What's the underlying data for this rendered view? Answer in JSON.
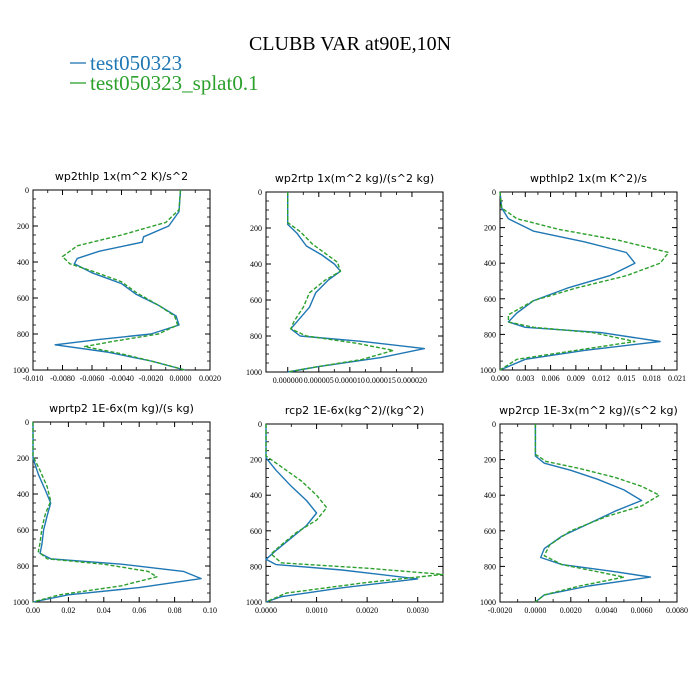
{
  "figure_title": "CLUBB VAR at90E,10N",
  "legend": [
    {
      "label": "test050323",
      "color": "#1f77b4",
      "dash": "solid"
    },
    {
      "label": "test050323_splat0.1",
      "color": "#2ca02c",
      "dash": "dashed"
    }
  ],
  "chart_data": [
    {
      "type": "line",
      "title": "wp2thlp  1x(m^2 K)/s^2",
      "xlim": [
        -0.01,
        0.002
      ],
      "xticks": [
        -0.01,
        -0.008,
        -0.006,
        -0.004,
        -0.002,
        0.0,
        0.002
      ],
      "xtick_labels": [
        "-0.010",
        "-0.0080",
        "-0.0060",
        "-0.0040",
        "-0.0020",
        "0.0000",
        "0.0020"
      ],
      "ylim": [
        1000,
        0
      ],
      "yticks": [
        0,
        200,
        400,
        600,
        800,
        1000
      ],
      "series": [
        {
          "name": "test050323",
          "points": [
            [
              0.0,
              0
            ],
            [
              -0.0001,
              120
            ],
            [
              -0.0008,
              200
            ],
            [
              -0.0025,
              260
            ],
            [
              -0.0026,
              290
            ],
            [
              -0.0055,
              340
            ],
            [
              -0.007,
              380
            ],
            [
              -0.0072,
              410
            ],
            [
              -0.006,
              460
            ],
            [
              -0.004,
              520
            ],
            [
              -0.003,
              580
            ],
            [
              -0.0015,
              640
            ],
            [
              -0.0003,
              700
            ],
            [
              -0.0001,
              750
            ],
            [
              -0.002,
              800
            ],
            [
              -0.0055,
              830
            ],
            [
              -0.0085,
              860
            ],
            [
              -0.005,
              900
            ],
            [
              -0.002,
              950
            ],
            [
              0.0003,
              1000
            ]
          ]
        },
        {
          "name": "test050323_splat0.1",
          "points": [
            [
              0.0,
              0
            ],
            [
              -0.0001,
              110
            ],
            [
              -0.001,
              180
            ],
            [
              -0.004,
              250
            ],
            [
              -0.007,
              310
            ],
            [
              -0.008,
              370
            ],
            [
              -0.0075,
              410
            ],
            [
              -0.006,
              450
            ],
            [
              -0.004,
              510
            ],
            [
              -0.003,
              570
            ],
            [
              -0.0015,
              640
            ],
            [
              -0.0004,
              700
            ],
            [
              -0.0002,
              750
            ],
            [
              -0.0015,
              800
            ],
            [
              -0.0045,
              840
            ],
            [
              -0.0065,
              870
            ],
            [
              -0.004,
              910
            ],
            [
              -0.0015,
              960
            ],
            [
              0.0003,
              1000
            ]
          ]
        }
      ]
    },
    {
      "type": "line",
      "title": "wp2rtp  1x(m^2 kg)/(s^2 kg)",
      "xlim": [
        -3.5e-06,
        2.5e-05
      ],
      "xticks": [
        0.0,
        5e-06,
        1e-05,
        1.5e-05,
        2e-05
      ],
      "xtick_labels": [
        "0.000000",
        "0.000005",
        "0.000010",
        "0.000015",
        "0.000020"
      ],
      "ylim": [
        1000,
        0
      ],
      "yticks": [
        0,
        200,
        400,
        600,
        800,
        1000
      ],
      "series": [
        {
          "name": "test050323",
          "points": [
            [
              0.0,
              0
            ],
            [
              0.0,
              180
            ],
            [
              1.5e-06,
              230
            ],
            [
              3e-06,
              300
            ],
            [
              5.5e-06,
              350
            ],
            [
              7.5e-06,
              400
            ],
            [
              8.5e-06,
              440
            ],
            [
              6.5e-06,
              490
            ],
            [
              4.5e-06,
              560
            ],
            [
              3.5e-06,
              640
            ],
            [
              1.5e-06,
              720
            ],
            [
              5e-07,
              760
            ],
            [
              2e-06,
              800
            ],
            [
              1.2e-05,
              830
            ],
            [
              2.2e-05,
              870
            ],
            [
              1.5e-05,
              920
            ],
            [
              5e-06,
              970
            ],
            [
              0.0,
              1000
            ]
          ]
        },
        {
          "name": "test050323_splat0.1",
          "points": [
            [
              0.0,
              0
            ],
            [
              0.0,
              170
            ],
            [
              2e-06,
              220
            ],
            [
              4e-06,
              290
            ],
            [
              6e-06,
              340
            ],
            [
              8e-06,
              390
            ],
            [
              8.5e-06,
              440
            ],
            [
              6e-06,
              490
            ],
            [
              3.5e-06,
              560
            ],
            [
              2.5e-06,
              640
            ],
            [
              1e-06,
              720
            ],
            [
              5e-07,
              760
            ],
            [
              3e-06,
              800
            ],
            [
              1.1e-05,
              840
            ],
            [
              1.7e-05,
              880
            ],
            [
              1.2e-05,
              930
            ],
            [
              4e-06,
              975
            ],
            [
              0.0,
              1000
            ]
          ]
        }
      ]
    },
    {
      "type": "line",
      "title": "wpthlp2  1x(m K^2)/s",
      "xlim": [
        0.0,
        0.021
      ],
      "xticks": [
        0.0,
        0.003,
        0.006,
        0.009,
        0.012,
        0.015,
        0.018,
        0.021
      ],
      "xtick_labels": [
        "0.000",
        "0.003",
        "0.006",
        "0.009",
        "0.012",
        "0.015",
        "0.018",
        "0.021"
      ],
      "ylim": [
        1000,
        0
      ],
      "yticks": [
        0,
        200,
        400,
        600,
        800,
        1000
      ],
      "series": [
        {
          "name": "test050323",
          "points": [
            [
              0.0,
              0
            ],
            [
              0.0002,
              90
            ],
            [
              0.001,
              150
            ],
            [
              0.004,
              220
            ],
            [
              0.01,
              280
            ],
            [
              0.015,
              340
            ],
            [
              0.016,
              400
            ],
            [
              0.013,
              470
            ],
            [
              0.008,
              540
            ],
            [
              0.004,
              610
            ],
            [
              0.002,
              680
            ],
            [
              0.001,
              730
            ],
            [
              0.003,
              760
            ],
            [
              0.012,
              790
            ],
            [
              0.019,
              840
            ],
            [
              0.01,
              890
            ],
            [
              0.003,
              940
            ],
            [
              0.0,
              1000
            ]
          ]
        },
        {
          "name": "test050323_splat0.1",
          "points": [
            [
              0.0,
              0
            ],
            [
              0.0002,
              90
            ],
            [
              0.002,
              150
            ],
            [
              0.007,
              210
            ],
            [
              0.014,
              270
            ],
            [
              0.02,
              340
            ],
            [
              0.019,
              400
            ],
            [
              0.015,
              470
            ],
            [
              0.009,
              540
            ],
            [
              0.004,
              610
            ],
            [
              0.001,
              690
            ],
            [
              0.001,
              730
            ],
            [
              0.004,
              760
            ],
            [
              0.011,
              790
            ],
            [
              0.016,
              840
            ],
            [
              0.009,
              890
            ],
            [
              0.002,
              940
            ],
            [
              0.0,
              1000
            ]
          ]
        }
      ]
    },
    {
      "type": "line",
      "title": "wprtp2  1E-6x(m kg)/(s kg)",
      "xlim": [
        0.0,
        0.1
      ],
      "xticks": [
        0.0,
        0.02,
        0.04,
        0.06,
        0.08,
        0.1
      ],
      "xtick_labels": [
        "0.00",
        "0.02",
        "0.04",
        "0.06",
        "0.08",
        "0.10"
      ],
      "ylim": [
        1000,
        0
      ],
      "yticks": [
        0,
        200,
        400,
        600,
        800,
        1000
      ],
      "series": [
        {
          "name": "test050323",
          "points": [
            [
              0.0,
              0
            ],
            [
              0.0,
              200
            ],
            [
              0.003,
              290
            ],
            [
              0.007,
              380
            ],
            [
              0.01,
              450
            ],
            [
              0.008,
              520
            ],
            [
              0.006,
              600
            ],
            [
              0.005,
              680
            ],
            [
              0.004,
              730
            ],
            [
              0.01,
              760
            ],
            [
              0.05,
              790
            ],
            [
              0.085,
              830
            ],
            [
              0.095,
              870
            ],
            [
              0.06,
              920
            ],
            [
              0.02,
              960
            ],
            [
              0.0,
              1000
            ]
          ]
        },
        {
          "name": "test050323_splat0.1",
          "points": [
            [
              0.0,
              0
            ],
            [
              0.0,
              190
            ],
            [
              0.004,
              270
            ],
            [
              0.008,
              360
            ],
            [
              0.01,
              440
            ],
            [
              0.007,
              510
            ],
            [
              0.005,
              590
            ],
            [
              0.004,
              670
            ],
            [
              0.003,
              720
            ],
            [
              0.008,
              760
            ],
            [
              0.04,
              790
            ],
            [
              0.065,
              830
            ],
            [
              0.07,
              860
            ],
            [
              0.05,
              910
            ],
            [
              0.015,
              960
            ],
            [
              0.0,
              1000
            ]
          ]
        }
      ]
    },
    {
      "type": "line",
      "title": "rcp2  1E-6x(kg^2)/(kg^2)",
      "xlim": [
        0.0,
        0.0035
      ],
      "xticks": [
        0.0,
        0.001,
        0.002,
        0.003
      ],
      "xtick_labels": [
        "0.0000",
        "0.0010",
        "0.0020",
        "0.0030"
      ],
      "ylim": [
        1000,
        0
      ],
      "yticks": [
        0,
        200,
        400,
        600,
        800,
        1000
      ],
      "series": [
        {
          "name": "test050323",
          "points": [
            [
              0.0,
              0
            ],
            [
              0.0,
              190
            ],
            [
              0.0002,
              260
            ],
            [
              0.0005,
              350
            ],
            [
              0.0008,
              430
            ],
            [
              0.001,
              500
            ],
            [
              0.0008,
              570
            ],
            [
              0.0005,
              640
            ],
            [
              0.0002,
              710
            ],
            [
              0.0,
              760
            ],
            [
              0.0002,
              790
            ],
            [
              0.0015,
              820
            ],
            [
              0.003,
              870
            ],
            [
              0.0015,
              920
            ],
            [
              0.0003,
              970
            ],
            [
              0.0,
              1000
            ]
          ]
        },
        {
          "name": "test050323_splat0.1",
          "points": [
            [
              0.0,
              0
            ],
            [
              0.0,
              180
            ],
            [
              0.0003,
              240
            ],
            [
              0.0007,
              320
            ],
            [
              0.001,
              400
            ],
            [
              0.0012,
              470
            ],
            [
              0.001,
              540
            ],
            [
              0.0006,
              610
            ],
            [
              0.0003,
              680
            ],
            [
              0.0001,
              730
            ],
            [
              0.0003,
              780
            ],
            [
              0.002,
              810
            ],
            [
              0.0035,
              845
            ],
            [
              0.002,
              890
            ],
            [
              0.0004,
              950
            ],
            [
              0.0,
              1000
            ]
          ]
        }
      ]
    },
    {
      "type": "line",
      "title": "wp2rcp  1E-3x(m^2 kg)/(s^2 kg)",
      "xlim": [
        -0.002,
        0.008
      ],
      "xticks": [
        -0.002,
        0.0,
        0.002,
        0.004,
        0.006,
        0.008
      ],
      "xtick_labels": [
        "-0.0020",
        "0.0000",
        "0.0020",
        "0.0040",
        "0.0060",
        "0.0080"
      ],
      "ylim": [
        1000,
        0
      ],
      "yticks": [
        0,
        200,
        400,
        600,
        800,
        1000
      ],
      "series": [
        {
          "name": "test050323",
          "points": [
            [
              0.0,
              0
            ],
            [
              0.0,
              180
            ],
            [
              0.0005,
              220
            ],
            [
              0.002,
              260
            ],
            [
              0.0035,
              310
            ],
            [
              0.005,
              370
            ],
            [
              0.006,
              430
            ],
            [
              0.0045,
              490
            ],
            [
              0.003,
              560
            ],
            [
              0.0015,
              630
            ],
            [
              0.0005,
              700
            ],
            [
              0.0003,
              750
            ],
            [
              0.0015,
              790
            ],
            [
              0.0045,
              830
            ],
            [
              0.0065,
              860
            ],
            [
              0.003,
              910
            ],
            [
              0.0005,
              960
            ],
            [
              0.0,
              1000
            ]
          ]
        },
        {
          "name": "test050323_splat0.1",
          "points": [
            [
              0.0,
              0
            ],
            [
              0.0,
              170
            ],
            [
              0.0006,
              210
            ],
            [
              0.0025,
              250
            ],
            [
              0.0045,
              300
            ],
            [
              0.006,
              350
            ],
            [
              0.007,
              400
            ],
            [
              0.006,
              460
            ],
            [
              0.004,
              520
            ],
            [
              0.002,
              600
            ],
            [
              0.0008,
              680
            ],
            [
              0.0005,
              740
            ],
            [
              0.0015,
              790
            ],
            [
              0.0035,
              830
            ],
            [
              0.005,
              860
            ],
            [
              0.0025,
              910
            ],
            [
              0.0005,
              960
            ],
            [
              0.0,
              1000
            ]
          ]
        }
      ]
    }
  ]
}
